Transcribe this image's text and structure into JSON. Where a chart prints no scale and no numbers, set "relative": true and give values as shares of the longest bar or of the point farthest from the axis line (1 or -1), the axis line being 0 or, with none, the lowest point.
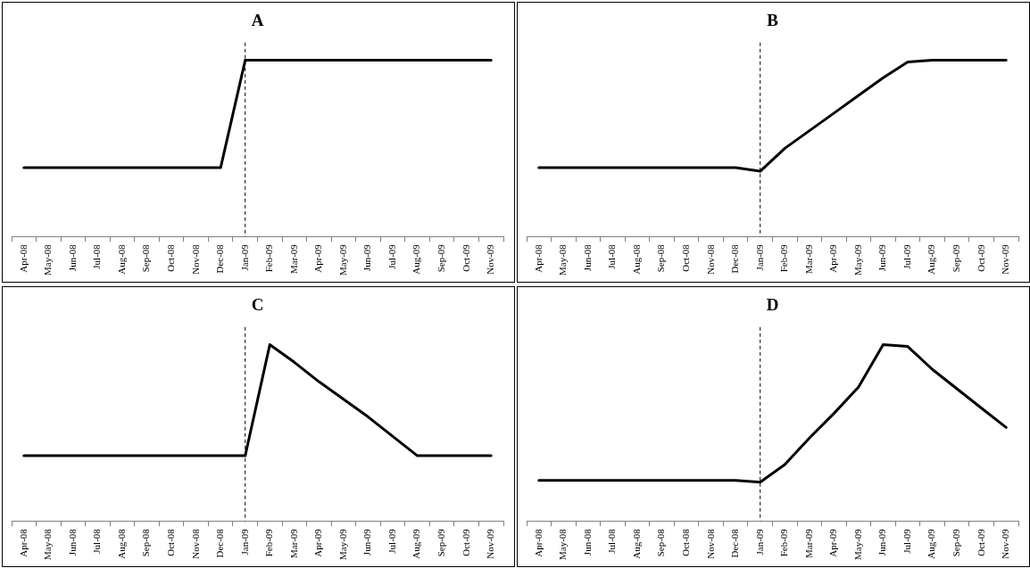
{
  "chart_data": [
    {
      "type": "line",
      "title": "A",
      "relative": true,
      "categories": [
        "Apr-08",
        "May-08",
        "Jun-08",
        "Jul-08",
        "Aug-08",
        "Sep-08",
        "Oct-08",
        "Nov-08",
        "Dec-08",
        "Jan-09",
        "Feb-09",
        "Mar-09",
        "Apr-09",
        "May-09",
        "Jun-09",
        "Jul-09",
        "Aug-09",
        "Sep-09",
        "Oct-09",
        "Nov-09"
      ],
      "series": [
        {
          "color": "#000000",
          "values": [
            0.39,
            0.39,
            0.39,
            0.39,
            0.39,
            0.39,
            0.39,
            0.39,
            0.39,
            1,
            1,
            1,
            1,
            1,
            1,
            1,
            1,
            1,
            1,
            1
          ]
        }
      ],
      "ref_lines": [
        {
          "axis": "x",
          "value": "Jan-09",
          "color": "#000000",
          "line_style": "dashed"
        }
      ],
      "legend": false,
      "tick_labels": "x",
      "grid": false
    },
    {
      "type": "line",
      "title": "B",
      "relative": true,
      "categories": [
        "Apr-08",
        "May-08",
        "Jun-08",
        "Jul-08",
        "Aug-08",
        "Sep-08",
        "Oct-08",
        "Nov-08",
        "Dec-08",
        "Jan-09",
        "Feb-09",
        "Mar-09",
        "Apr-09",
        "May-09",
        "Jun-09",
        "Jul-09",
        "Aug-09",
        "Sep-09",
        "Oct-09",
        "Nov-09"
      ],
      "series": [
        {
          "color": "#000000",
          "values": [
            0.39,
            0.39,
            0.39,
            0.39,
            0.39,
            0.39,
            0.39,
            0.39,
            0.39,
            0.37,
            0.5,
            0.6,
            0.7,
            0.8,
            0.9,
            0.99,
            1,
            1,
            1,
            1
          ]
        }
      ],
      "ref_lines": [
        {
          "axis": "x",
          "value": "Jan-09",
          "color": "#000000",
          "line_style": "dashed"
        }
      ],
      "legend": false,
      "tick_labels": "x",
      "grid": false
    },
    {
      "type": "line",
      "title": "C",
      "relative": true,
      "categories": [
        "Apr-08",
        "May-08",
        "Jun-08",
        "Jul-08",
        "Aug-08",
        "Sep-08",
        "Oct-08",
        "Nov-08",
        "Dec-08",
        "Jan-09",
        "Feb-09",
        "Mar-09",
        "Apr-09",
        "May-09",
        "Jun-09",
        "Jul-09",
        "Aug-09",
        "Sep-09",
        "Oct-09",
        "Nov-09"
      ],
      "series": [
        {
          "color": "#000000",
          "values": [
            0.37,
            0.37,
            0.37,
            0.37,
            0.37,
            0.37,
            0.37,
            0.37,
            0.37,
            0.37,
            1,
            0.9,
            0.79,
            0.69,
            0.59,
            0.48,
            0.37,
            0.37,
            0.37,
            0.37
          ]
        }
      ],
      "ref_lines": [
        {
          "axis": "x",
          "value": "Jan-09",
          "color": "#000000",
          "line_style": "dashed"
        }
      ],
      "legend": false,
      "tick_labels": "x",
      "grid": false
    },
    {
      "type": "line",
      "title": "D",
      "relative": true,
      "categories": [
        "Apr-08",
        "May-08",
        "Jun-08",
        "Jul-08",
        "Aug-08",
        "Sep-08",
        "Oct-08",
        "Nov-08",
        "Dec-08",
        "Jan-09",
        "Feb-09",
        "Mar-09",
        "Apr-09",
        "May-09",
        "Jun-09",
        "Jul-09",
        "Aug-09",
        "Sep-09",
        "Oct-09",
        "Nov-09"
      ],
      "series": [
        {
          "color": "#000000",
          "values": [
            0.23,
            0.23,
            0.23,
            0.23,
            0.23,
            0.23,
            0.23,
            0.23,
            0.23,
            0.22,
            0.32,
            0.47,
            0.61,
            0.76,
            1,
            0.99,
            0.86,
            0.75,
            0.64,
            0.53
          ]
        }
      ],
      "ref_lines": [
        {
          "axis": "x",
          "value": "Jan-09",
          "color": "#000000",
          "line_style": "dashed"
        }
      ],
      "legend": false,
      "tick_labels": "x",
      "grid": false
    }
  ]
}
